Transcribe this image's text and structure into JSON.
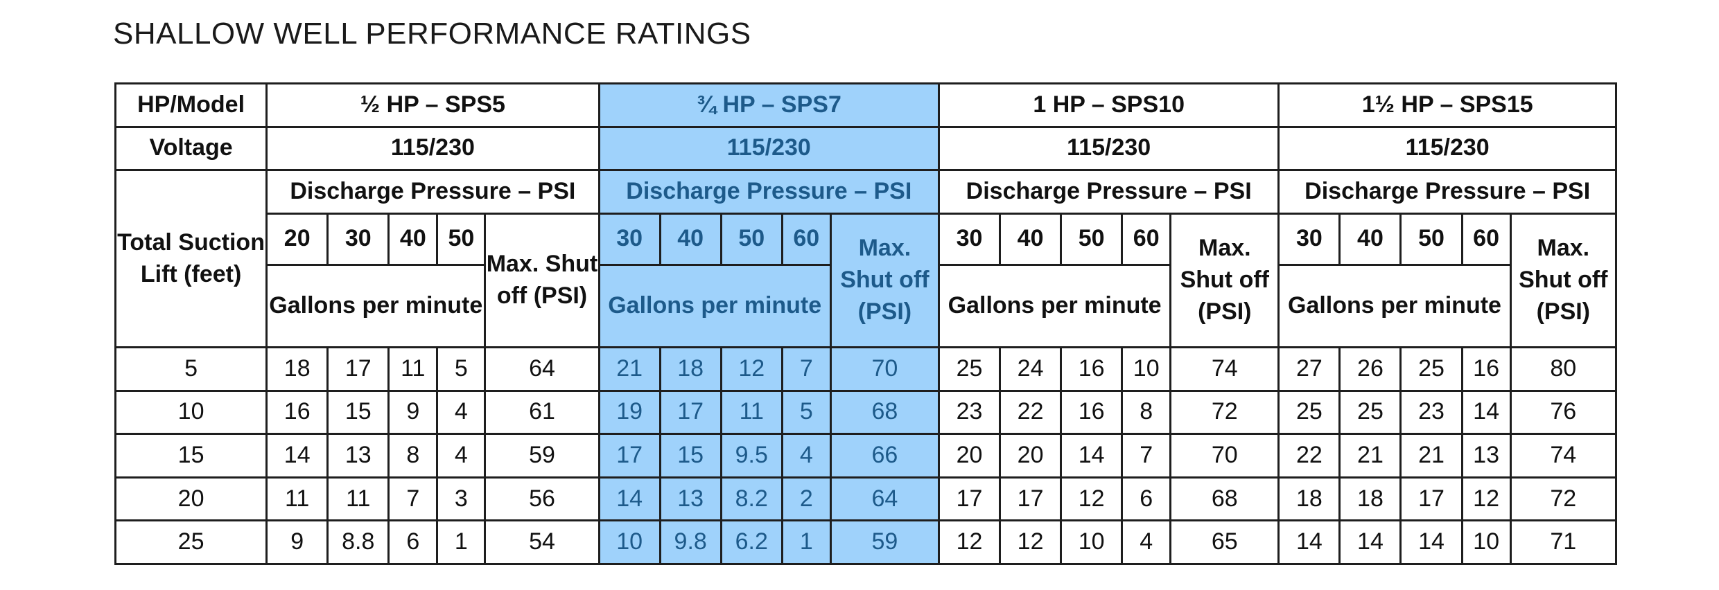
{
  "title": "SHALLOW WELL PERFORMANCE RATINGS",
  "colors": {
    "highlight_bg": "#9fd2fb",
    "highlight_text": "#1d5a8a",
    "border": "#1e1e1e"
  },
  "row_labels": {
    "model": "HP/Model",
    "voltage": "Voltage",
    "lift": "Total Suction Lift (feet)"
  },
  "common": {
    "discharge_label": "Discharge Pressure – PSI",
    "gpm_label": "Gallons per minute",
    "max_label": "Max. Shut off (PSI)"
  },
  "groups": [
    {
      "model": "½ HP – SPS5",
      "voltage": "115/230",
      "psi": [
        "20",
        "30",
        "40",
        "50"
      ],
      "rows": [
        [
          "18",
          "17",
          "11",
          "5",
          "64"
        ],
        [
          "16",
          "15",
          "9",
          "4",
          "61"
        ],
        [
          "14",
          "13",
          "8",
          "4",
          "59"
        ],
        [
          "11",
          "11",
          "7",
          "3",
          "56"
        ],
        [
          "9",
          "8.8",
          "6",
          "1",
          "54"
        ]
      ]
    },
    {
      "model": "¾ HP – SPS7",
      "voltage": "115/230",
      "psi": [
        "30",
        "40",
        "50",
        "60"
      ],
      "rows": [
        [
          "21",
          "18",
          "12",
          "7",
          "70"
        ],
        [
          "19",
          "17",
          "11",
          "5",
          "68"
        ],
        [
          "17",
          "15",
          "9.5",
          "4",
          "66"
        ],
        [
          "14",
          "13",
          "8.2",
          "2",
          "64"
        ],
        [
          "10",
          "9.8",
          "6.2",
          "1",
          "59"
        ]
      ]
    },
    {
      "model": "1 HP – SPS10",
      "voltage": "115/230",
      "psi": [
        "30",
        "40",
        "50",
        "60"
      ],
      "rows": [
        [
          "25",
          "24",
          "16",
          "10",
          "74"
        ],
        [
          "23",
          "22",
          "16",
          "8",
          "72"
        ],
        [
          "20",
          "20",
          "14",
          "7",
          "70"
        ],
        [
          "17",
          "17",
          "12",
          "6",
          "68"
        ],
        [
          "12",
          "12",
          "10",
          "4",
          "65"
        ]
      ]
    },
    {
      "model": "1½ HP – SPS15",
      "voltage": "115/230",
      "psi": [
        "30",
        "40",
        "50",
        "60"
      ],
      "rows": [
        [
          "27",
          "26",
          "25",
          "16",
          "80"
        ],
        [
          "25",
          "25",
          "23",
          "14",
          "76"
        ],
        [
          "22",
          "21",
          "21",
          "13",
          "74"
        ],
        [
          "18",
          "18",
          "17",
          "12",
          "72"
        ],
        [
          "14",
          "14",
          "14",
          "10",
          "71"
        ]
      ]
    }
  ],
  "lifts": [
    "5",
    "10",
    "15",
    "20",
    "25"
  ]
}
